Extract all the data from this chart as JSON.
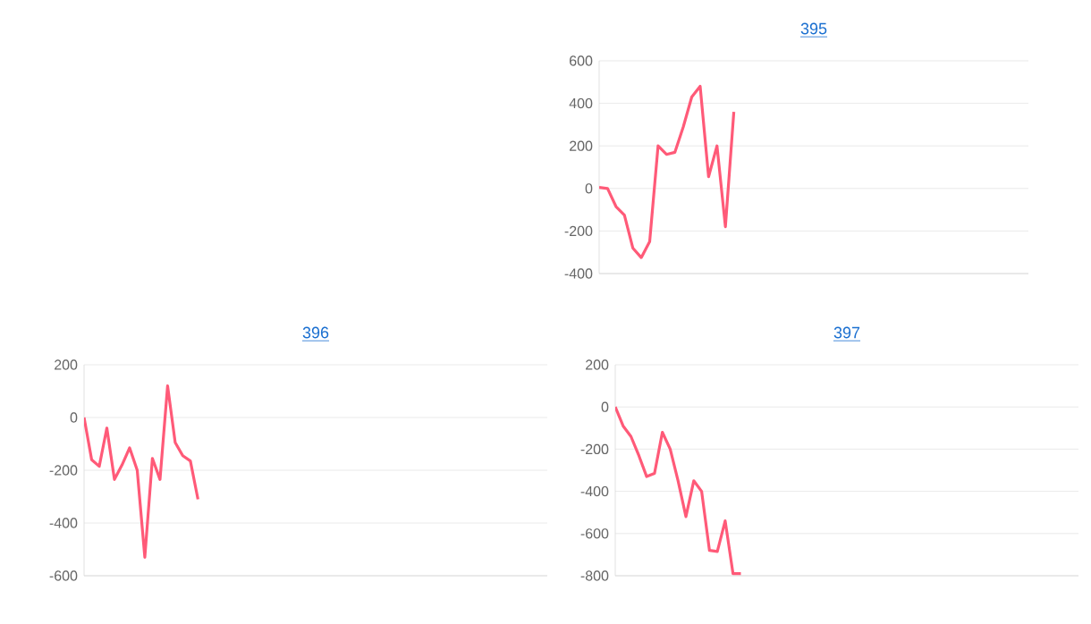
{
  "chart_data": [
    {
      "type": "line",
      "title": "395",
      "color": "#ff5a78",
      "ylim": [
        -400,
        600
      ],
      "yticks": [
        -400,
        -200,
        0,
        200,
        400,
        600
      ],
      "grid": "y",
      "tick_labels": "y",
      "categories": [
        null,
        null,
        null,
        null,
        null,
        null,
        null,
        null,
        null,
        null,
        null,
        null,
        null,
        null,
        null,
        null,
        null,
        null,
        null,
        null,
        null,
        null,
        null,
        null,
        null,
        null,
        null,
        null,
        null,
        null,
        null,
        null,
        null,
        null,
        null,
        null,
        null,
        null,
        null,
        null,
        null,
        null,
        null,
        null,
        null,
        null,
        null,
        null,
        null,
        null,
        null,
        null
      ],
      "values": [
        5,
        0,
        -85,
        -125,
        -280,
        -325,
        -250,
        200,
        160,
        170,
        290,
        430,
        480,
        55,
        200,
        -180,
        360,
        null,
        null,
        null,
        null,
        null,
        null,
        null,
        null,
        null,
        null,
        null,
        null,
        null,
        null,
        null,
        null,
        null,
        null,
        null,
        null,
        null,
        null,
        null,
        null,
        null,
        null,
        null,
        null,
        null,
        null,
        null,
        null,
        null,
        null,
        null
      ]
    },
    {
      "type": "line",
      "title": "396",
      "color": "#ff5a78",
      "ylim": [
        -600,
        200
      ],
      "yticks": [
        -600,
        -400,
        -200,
        0,
        200
      ],
      "grid": "y",
      "tick_labels": "y",
      "categories": [
        null,
        null,
        null,
        null,
        null,
        null,
        null,
        null,
        null,
        null,
        null,
        null,
        null,
        null,
        null,
        null,
        null,
        null,
        null,
        null,
        null,
        null,
        null,
        null,
        null,
        null,
        null,
        null,
        null,
        null,
        null,
        null,
        null,
        null,
        null,
        null,
        null,
        null,
        null,
        null,
        null,
        null,
        null,
        null,
        null,
        null,
        null,
        null,
        null,
        null,
        null,
        null,
        null,
        null,
        null,
        null,
        null,
        null,
        null,
        null,
        null,
        null
      ],
      "values": [
        0,
        -160,
        -185,
        -40,
        -235,
        -180,
        -115,
        -200,
        -530,
        -155,
        -235,
        120,
        -95,
        -145,
        -165,
        -310,
        null,
        null,
        null,
        null,
        null,
        null,
        null,
        null,
        null,
        null,
        null,
        null,
        null,
        null,
        null,
        null,
        null,
        null,
        null,
        null,
        null,
        null,
        null,
        null,
        null,
        null,
        null,
        null,
        null,
        null,
        null,
        null,
        null,
        null,
        null,
        null,
        null,
        null,
        null,
        null,
        null,
        null,
        null,
        null,
        null,
        null
      ]
    },
    {
      "type": "line",
      "title": "397",
      "color": "#ff5a78",
      "ylim": [
        -800,
        200
      ],
      "yticks": [
        -800,
        -600,
        -400,
        -200,
        0,
        200
      ],
      "grid": "y",
      "tick_labels": "y",
      "categories": [
        null,
        null,
        null,
        null,
        null,
        null,
        null,
        null,
        null,
        null,
        null,
        null,
        null,
        null,
        null,
        null,
        null,
        null,
        null,
        null,
        null,
        null,
        null,
        null,
        null,
        null,
        null,
        null,
        null,
        null,
        null,
        null,
        null,
        null,
        null,
        null,
        null,
        null,
        null,
        null,
        null,
        null,
        null,
        null,
        null,
        null,
        null,
        null,
        null,
        null,
        null,
        null,
        null,
        null,
        null,
        null,
        null,
        null,
        null,
        null
      ],
      "values": [
        0,
        -90,
        -140,
        -230,
        -330,
        -315,
        -120,
        -200,
        -350,
        -520,
        -350,
        -400,
        -680,
        -685,
        -540,
        -790,
        -790,
        null,
        null,
        null,
        null,
        null,
        null,
        null,
        null,
        null,
        null,
        null,
        null,
        null,
        null,
        null,
        null,
        null,
        null,
        null,
        null,
        null,
        null,
        null,
        null,
        null,
        null,
        null,
        null,
        null,
        null,
        null,
        null,
        null,
        null,
        null,
        null,
        null,
        null,
        null,
        null,
        null,
        null,
        null
      ]
    }
  ]
}
